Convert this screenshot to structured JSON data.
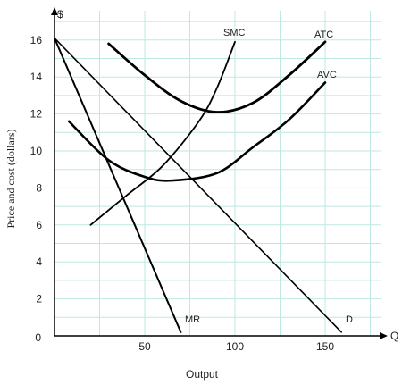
{
  "chart_data": {
    "type": "line",
    "title": "",
    "xlabel": "Output",
    "ylabel": "Price and cost (dollars)",
    "y_axis_symbol": "$",
    "x_axis_symbol": "Q",
    "xlim": [
      0,
      190
    ],
    "ylim": [
      0,
      18
    ],
    "x_ticks": [
      0,
      50,
      100,
      150
    ],
    "x_tick_labels": [
      "0",
      "50",
      "100",
      "150"
    ],
    "y_ticks": [
      2,
      4,
      6,
      8,
      10,
      12,
      14,
      16
    ],
    "y_tick_labels": [
      "2",
      "4",
      "6",
      "8",
      "10",
      "12",
      "14",
      "16"
    ],
    "grid": true,
    "colors": {
      "curve": "#000000",
      "grid": "#bfe8e3",
      "axis": "#000000"
    },
    "series": [
      {
        "name": "D",
        "points": [
          [
            0,
            16.1
          ],
          [
            159,
            0.2
          ]
        ]
      },
      {
        "name": "MR",
        "points": [
          [
            0,
            16.1
          ],
          [
            70,
            0.2
          ]
        ]
      },
      {
        "name": "SMC",
        "points": [
          [
            20,
            6
          ],
          [
            40,
            7.6
          ],
          [
            60,
            9.2
          ],
          [
            80,
            11.6
          ],
          [
            90,
            13.4
          ],
          [
            100,
            15.9
          ]
        ]
      },
      {
        "name": "ATC",
        "points": [
          [
            30,
            15.8
          ],
          [
            50,
            14.1
          ],
          [
            70,
            12.7
          ],
          [
            90,
            12.1
          ],
          [
            110,
            12.6
          ],
          [
            130,
            14.1
          ],
          [
            150,
            15.9
          ]
        ]
      },
      {
        "name": "AVC",
        "points": [
          [
            8,
            11.6
          ],
          [
            30,
            9.5
          ],
          [
            50,
            8.6
          ],
          [
            65,
            8.4
          ],
          [
            90,
            8.8
          ],
          [
            110,
            10.2
          ],
          [
            130,
            11.7
          ],
          [
            150,
            13.7
          ]
        ]
      }
    ]
  }
}
